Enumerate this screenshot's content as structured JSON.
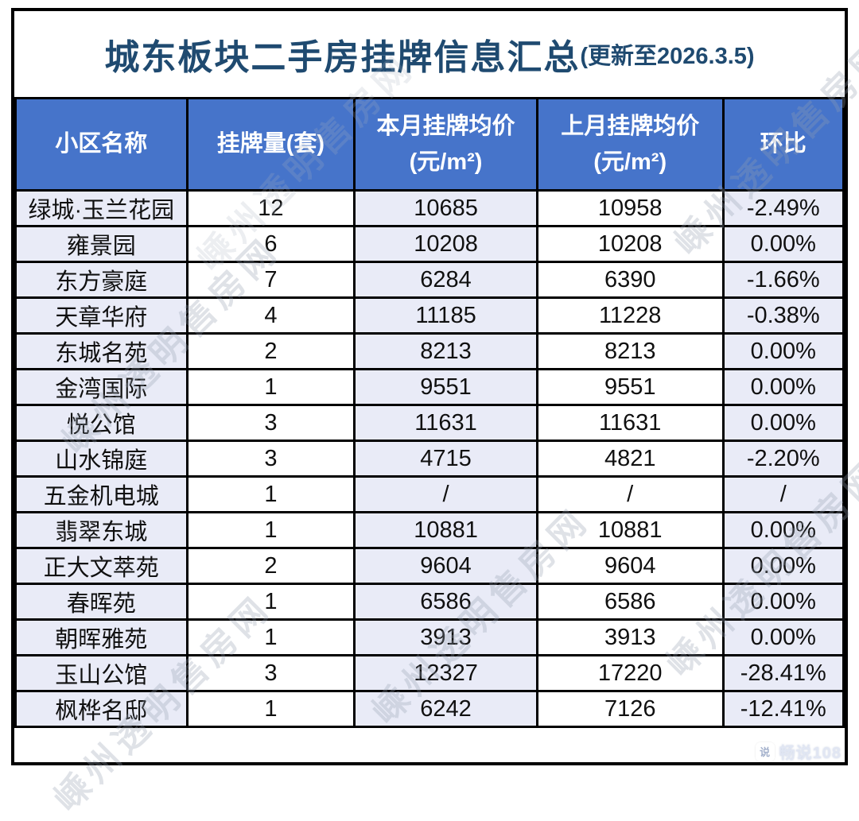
{
  "title": {
    "main": "城东板块二手房挂牌信息汇总",
    "suffix": "(更新至2026.3.5)"
  },
  "table": {
    "headers": [
      {
        "line1": "小区名称",
        "line2": ""
      },
      {
        "line1": "挂牌量(套)",
        "line2": ""
      },
      {
        "line1": "本月挂牌均价",
        "line2": "(元/m²)"
      },
      {
        "line1": "上月挂牌均价",
        "line2": "(元/m²)"
      },
      {
        "line1": "环比",
        "line2": ""
      }
    ],
    "rows": [
      [
        "绿城·玉兰花园",
        "12",
        "10685",
        "10958",
        "-2.49%"
      ],
      [
        "雍景园",
        "6",
        "10208",
        "10208",
        "0.00%"
      ],
      [
        "东方豪庭",
        "7",
        "6284",
        "6390",
        "-1.66%"
      ],
      [
        "天章华府",
        "4",
        "11185",
        "11228",
        "-0.38%"
      ],
      [
        "东城名苑",
        "2",
        "8213",
        "8213",
        "0.00%"
      ],
      [
        "金湾国际",
        "1",
        "9551",
        "9551",
        "0.00%"
      ],
      [
        "悦公馆",
        "3",
        "11631",
        "11631",
        "0.00%"
      ],
      [
        "山水锦庭",
        "3",
        "4715",
        "4821",
        "-2.20%"
      ],
      [
        "五金机电城",
        "1",
        "/",
        "/",
        "/"
      ],
      [
        "翡翠东城",
        "1",
        "10881",
        "10881",
        "0.00%"
      ],
      [
        "正大文萃苑",
        "2",
        "9604",
        "9604",
        "0.00%"
      ],
      [
        "春晖苑",
        "1",
        "6586",
        "6586",
        "0.00%"
      ],
      [
        "朝晖雅苑",
        "1",
        "3913",
        "3913",
        "0.00%"
      ],
      [
        "玉山公馆",
        "3",
        "12327",
        "17220",
        "-28.41%"
      ],
      [
        "枫桦名邸",
        "1",
        "6242",
        "7126",
        "-12.41%"
      ]
    ]
  },
  "chart_data": {
    "type": "table",
    "title": "城东板块二手房挂牌信息汇总(更新至2026.3.5)",
    "columns": [
      "小区名称",
      "挂牌量(套)",
      "本月挂牌均价(元/m²)",
      "上月挂牌均价(元/m²)",
      "环比"
    ],
    "rows": [
      [
        "绿城·玉兰花园",
        12,
        10685,
        10958,
        "-2.49%"
      ],
      [
        "雍景园",
        6,
        10208,
        10208,
        "0.00%"
      ],
      [
        "东方豪庭",
        7,
        6284,
        6390,
        "-1.66%"
      ],
      [
        "天章华府",
        4,
        11185,
        11228,
        "-0.38%"
      ],
      [
        "东城名苑",
        2,
        8213,
        8213,
        "0.00%"
      ],
      [
        "金湾国际",
        1,
        9551,
        9551,
        "0.00%"
      ],
      [
        "悦公馆",
        3,
        11631,
        11631,
        "0.00%"
      ],
      [
        "山水锦庭",
        3,
        4715,
        4821,
        "-2.20%"
      ],
      [
        "五金机电城",
        1,
        "/",
        "/",
        "/"
      ],
      [
        "翡翠东城",
        1,
        10881,
        10881,
        "0.00%"
      ],
      [
        "正大文萃苑",
        2,
        9604,
        9604,
        "0.00%"
      ],
      [
        "春晖苑",
        1,
        6586,
        6586,
        "0.00%"
      ],
      [
        "朝晖雅苑",
        1,
        3913,
        3913,
        "0.00%"
      ],
      [
        "玉山公馆",
        3,
        12327,
        17220,
        "-28.41%"
      ],
      [
        "枫桦名邸",
        1,
        6242,
        7126,
        "-12.41%"
      ]
    ]
  },
  "watermark": {
    "text": "嵊州透明售房网"
  },
  "badge": {
    "icon_glyph": "说",
    "text": "畅说108"
  },
  "colors": {
    "header_bg": "#4674CA",
    "band_bg": "#E9EBF7",
    "border": "#000000",
    "title_color": "#1F4A70"
  }
}
